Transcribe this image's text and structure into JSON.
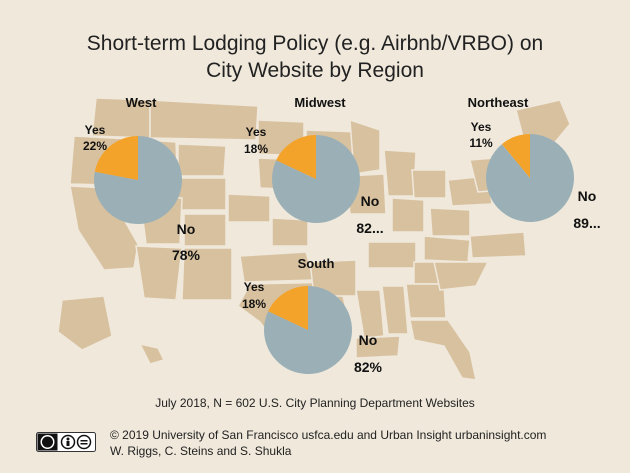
{
  "title_line1": "Short-term Lodging Policy (e.g. Airbnb/VRBO) on",
  "title_line2": "City Website by Region",
  "footnote": "July 2018, N = 602 U.S. City Planning Department Websites",
  "credit_line1": "© 2019 University of San Francisco usfca.edu and Urban Insight urbaninsight.com",
  "credit_line2": "W. Riggs, C. Steins and S. Shukla",
  "colors": {
    "background": "#efe8db",
    "map": "#d8c19f",
    "yes": "#f4a32a",
    "no": "#9bb0b6"
  },
  "chart_data": [
    {
      "type": "pie",
      "title": "West",
      "categories": [
        "Yes",
        "No"
      ],
      "values": [
        22,
        78
      ],
      "labels": {
        "Yes": "22%",
        "No": "78%"
      }
    },
    {
      "type": "pie",
      "title": "Midwest",
      "categories": [
        "Yes",
        "No"
      ],
      "values": [
        18,
        82
      ],
      "labels": {
        "Yes": "18%",
        "No": "82..."
      }
    },
    {
      "type": "pie",
      "title": "Northeast",
      "categories": [
        "Yes",
        "No"
      ],
      "values": [
        11,
        89
      ],
      "labels": {
        "Yes": "11%",
        "No": "89..."
      }
    },
    {
      "type": "pie",
      "title": "South",
      "categories": [
        "Yes",
        "No"
      ],
      "values": [
        18,
        82
      ],
      "labels": {
        "Yes": "18%",
        "No": "82%"
      }
    }
  ]
}
